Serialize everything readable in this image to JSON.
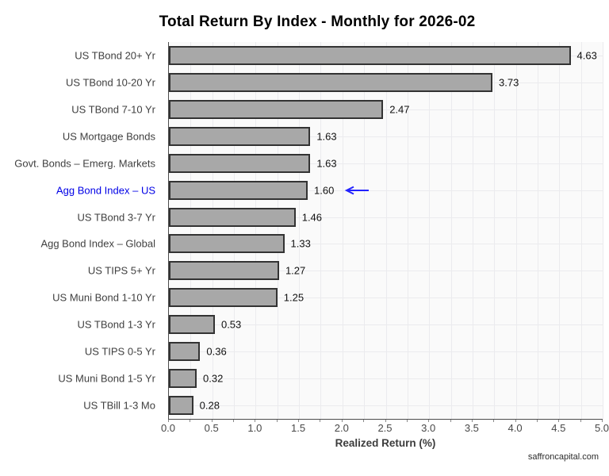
{
  "chart_data": {
    "type": "bar",
    "orientation": "horizontal",
    "title": "Total Return By Index - Monthly for 2026-02",
    "xlabel": "Realized Return (%)",
    "ylabel": "",
    "xlim": [
      0,
      5
    ],
    "xticks": [
      "0.0",
      "0.5",
      "1.0",
      "1.5",
      "2.0",
      "2.5",
      "3.0",
      "3.5",
      "4.0",
      "4.5",
      "5.0"
    ],
    "minor_grid_step": 0.25,
    "grid": true,
    "legend": "none",
    "categories": [
      "US TBond 20+ Yr",
      "US TBond 10-20 Yr",
      "US TBond 7-10 Yr",
      "US Mortgage Bonds",
      "Govt. Bonds – Emerg. Markets",
      "Agg Bond Index – US",
      "US TBond 3-7 Yr",
      "Agg Bond Index – Global",
      "US TIPS 5+ Yr",
      "US Muni Bond 1-10 Yr",
      "US TBond 1-3 Yr",
      "US TIPS 0-5 Yr",
      "US Muni Bond 1-5 Yr",
      "US TBill 1-3 Mo"
    ],
    "values": [
      4.63,
      3.73,
      2.47,
      1.63,
      1.63,
      1.6,
      1.46,
      1.33,
      1.27,
      1.25,
      0.53,
      0.36,
      0.32,
      0.28
    ],
    "value_labels": [
      "4.63",
      "3.73",
      "2.47",
      "1.63",
      "1.63",
      "1.60",
      "1.46",
      "1.33",
      "1.27",
      "1.25",
      "0.53",
      "0.36",
      "0.32",
      "0.28"
    ],
    "highlight": {
      "index": 5,
      "category": "Agg Bond Index – US",
      "marker": "left-arrow",
      "label_color": "#0000e6",
      "arrow_color": "#2222ff"
    },
    "colors": {
      "bar_fill": "#a8a8a8",
      "bar_border": "#333333",
      "plot_background": "#fafafa",
      "gridline": "#ebebee",
      "axis_line": "#4d4d4d",
      "title_color": "#000000",
      "tick_label_color": "#474747",
      "category_label_color": "#404040",
      "value_label_color": "#111111"
    }
  },
  "footer": {
    "watermark": "saffroncapital.com"
  }
}
